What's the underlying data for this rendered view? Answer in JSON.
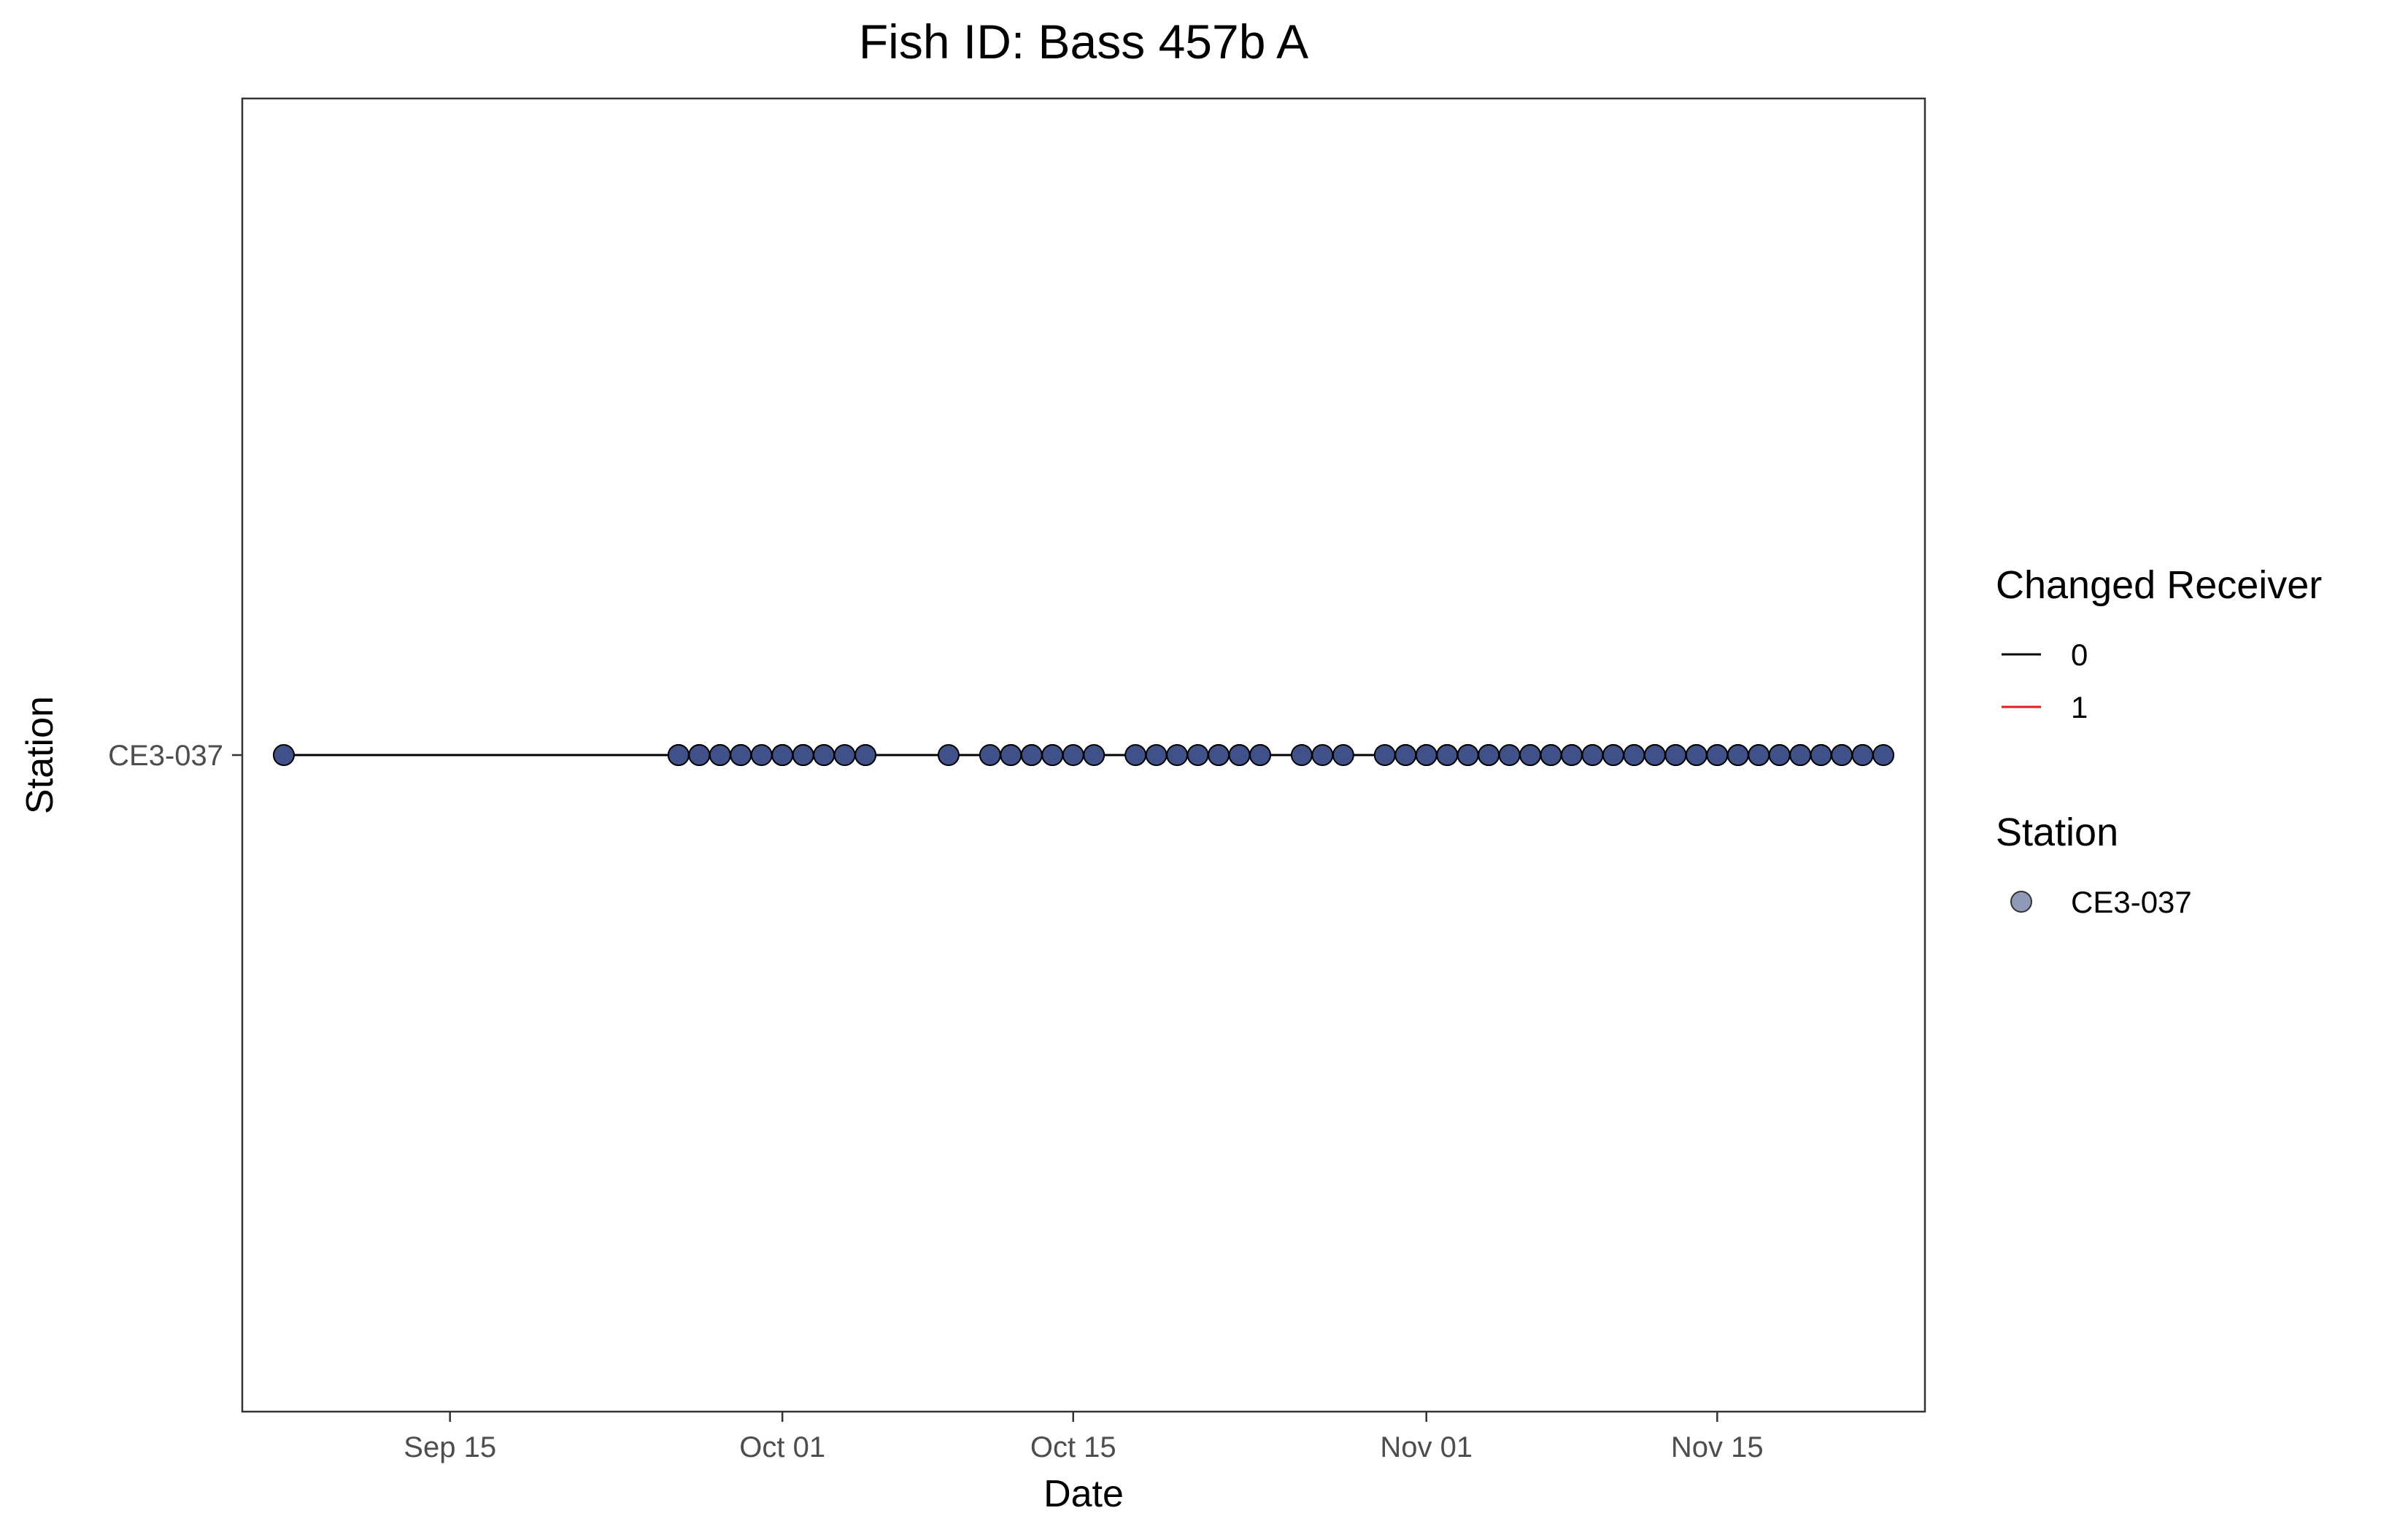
{
  "chart_data": {
    "type": "scatter",
    "title": "Fish ID: Bass 457b A",
    "xlabel": "Date",
    "ylabel": "Station",
    "xlim": [
      "2023-09-05",
      "2023-11-25"
    ],
    "x_ticks": [
      {
        "date": "2023-09-15",
        "label": "Sep 15"
      },
      {
        "date": "2023-10-01",
        "label": "Oct 01"
      },
      {
        "date": "2023-10-15",
        "label": "Oct 15"
      },
      {
        "date": "2023-11-01",
        "label": "Nov 01"
      },
      {
        "date": "2023-11-15",
        "label": "Nov 15"
      }
    ],
    "categories": [
      "CE3-037"
    ],
    "grid": false,
    "legend_position": "right",
    "legends": [
      {
        "title": "Changed Receiver",
        "kind": "line",
        "entries": [
          {
            "label": "0",
            "color": "#000000"
          },
          {
            "label": "1",
            "color": "#e41a1c"
          }
        ]
      },
      {
        "title": "Station",
        "kind": "point",
        "entries": [
          {
            "label": "CE3-037",
            "color": "#8f9ab8"
          }
        ]
      }
    ],
    "series": [
      {
        "station": "CE3-037",
        "point_color": "#3f5188",
        "line_color": "#000000",
        "x": [
          "2023-09-07",
          "2023-09-26",
          "2023-09-26",
          "2023-09-27",
          "2023-09-27",
          "2023-09-28",
          "2023-09-28",
          "2023-09-29",
          "2023-09-29",
          "2023-09-30",
          "2023-10-01",
          "2023-10-01",
          "2023-10-01",
          "2023-10-02",
          "2023-10-02",
          "2023-10-02",
          "2023-10-03",
          "2023-10-03",
          "2023-10-04",
          "2023-10-05",
          "2023-10-05",
          "2023-10-09",
          "2023-10-11",
          "2023-10-12",
          "2023-10-12",
          "2023-10-13",
          "2023-10-13",
          "2023-10-14",
          "2023-10-14",
          "2023-10-15",
          "2023-10-16",
          "2023-10-18",
          "2023-10-19",
          "2023-10-20",
          "2023-10-21",
          "2023-10-22",
          "2023-10-22",
          "2023-10-23",
          "2023-10-23",
          "2023-10-24",
          "2023-10-24",
          "2023-10-26",
          "2023-10-27",
          "2023-10-28",
          "2023-10-30",
          "2023-10-31",
          "2023-10-31",
          "2023-11-01",
          "2023-11-01",
          "2023-11-02",
          "2023-11-02",
          "2023-11-03",
          "2023-11-03",
          "2023-11-04",
          "2023-11-04",
          "2023-11-05",
          "2023-11-06",
          "2023-11-06",
          "2023-11-07",
          "2023-11-07",
          "2023-11-08",
          "2023-11-08",
          "2023-11-09",
          "2023-11-09",
          "2023-11-10",
          "2023-11-10",
          "2023-11-11",
          "2023-11-11",
          "2023-11-12",
          "2023-11-12",
          "2023-11-13",
          "2023-11-13",
          "2023-11-14",
          "2023-11-14",
          "2023-11-15",
          "2023-11-15",
          "2023-11-16",
          "2023-11-16",
          "2023-11-17",
          "2023-11-17",
          "2023-11-18",
          "2023-11-18",
          "2023-11-19",
          "2023-11-19",
          "2023-11-20",
          "2023-11-20",
          "2023-11-21",
          "2023-11-21",
          "2023-11-22",
          "2023-11-22",
          "2023-11-23"
        ]
      }
    ]
  }
}
